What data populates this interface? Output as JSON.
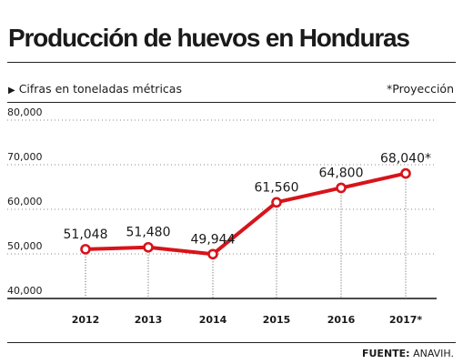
{
  "header": {
    "title": "Producción de huevos en Honduras",
    "subtitle": "Cifras en toneladas métricas",
    "projection_note": "*Proyección",
    "source_label": "FUENTE:",
    "source_value": "ANAVIH."
  },
  "colors": {
    "line": "#d7141a",
    "text": "#1a1a1a",
    "grid": "#8a8a8a"
  },
  "chart_data": {
    "type": "line",
    "title": "Producción de huevos en Honduras",
    "ylabel": "Cifras en toneladas métricas",
    "categories": [
      "2012",
      "2013",
      "2014",
      "2015",
      "2016",
      "2017*"
    ],
    "series": [
      {
        "values": [
          51048,
          51480,
          49944,
          61560,
          64800,
          68040
        ]
      }
    ],
    "data_labels": [
      "51,048",
      "51,480",
      "49,944",
      "61,560",
      "64,800",
      "68,040*"
    ],
    "yticks": [
      40000,
      50000,
      60000,
      70000,
      80000
    ],
    "ytick_labels": [
      "40,000",
      "50,000",
      "60,000",
      "70,000",
      "80,000"
    ],
    "ylim": [
      40000,
      80000
    ],
    "grid": true,
    "projected_from": "2017*"
  }
}
